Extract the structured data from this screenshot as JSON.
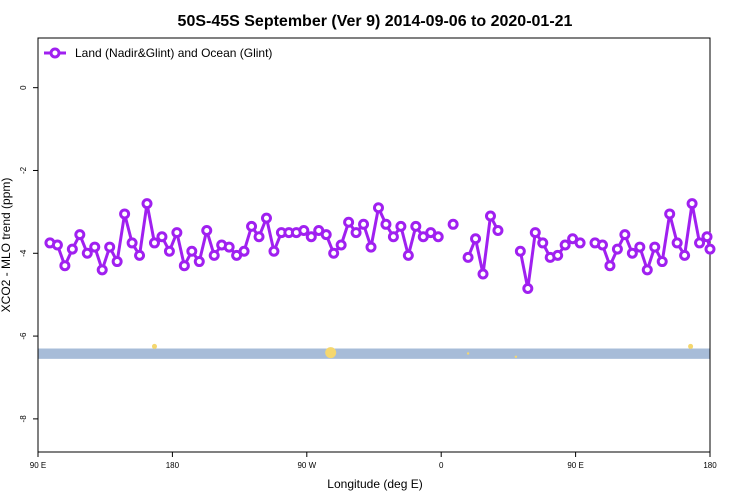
{
  "chart_data": {
    "type": "line",
    "title": "50S-45S September (Ver 9)   2014-09-06 to 2020-01-21",
    "xlabel": "Longitude (deg E)",
    "ylabel": "XCO2 - MLO trend (ppm)",
    "x_ticks": [
      {
        "value": 90,
        "label": "90 E"
      },
      {
        "value": 180,
        "label": "180"
      },
      {
        "value": 270,
        "label": "90 W"
      },
      {
        "value": 360,
        "label": "0"
      },
      {
        "value": 450,
        "label": "90 E"
      },
      {
        "value": 540,
        "label": "180"
      }
    ],
    "y_ticks": [
      0,
      -2,
      -4,
      -6,
      -8
    ],
    "xlim": [
      90,
      540
    ],
    "ylim": [
      -8.8,
      1.2
    ],
    "legend": {
      "position": "top-left"
    },
    "series": [
      {
        "name": "Land (Nadir&Glint) and Ocean (Glint)",
        "color": "#a020f0",
        "x": [
          98,
          103,
          108,
          113,
          118,
          123,
          128,
          133,
          138,
          143,
          148,
          153,
          158,
          163,
          168,
          173,
          178,
          183,
          188,
          193,
          198,
          203,
          208,
          213,
          218,
          223,
          228,
          233,
          238,
          243,
          248,
          253,
          258,
          263,
          268,
          273,
          278,
          283,
          288,
          293,
          298,
          303,
          308,
          313,
          318,
          323,
          328,
          333,
          338,
          343,
          348,
          353,
          358,
          null,
          368,
          null,
          378,
          383,
          388,
          393,
          398,
          null,
          413,
          418,
          423,
          428,
          433,
          438,
          443,
          448,
          453,
          null,
          463,
          468,
          473,
          478,
          483,
          488,
          493,
          498,
          503,
          508,
          513,
          518,
          523,
          528,
          533,
          538,
          540
        ],
        "y": [
          -3.75,
          -3.8,
          -4.3,
          -3.9,
          -3.55,
          -4.0,
          -3.85,
          -4.4,
          -3.85,
          -4.2,
          -3.05,
          -3.75,
          -4.05,
          -2.8,
          -3.75,
          -3.6,
          -3.95,
          -3.5,
          -4.3,
          -3.95,
          -4.2,
          -3.45,
          -4.05,
          -3.8,
          -3.85,
          -4.05,
          -3.95,
          -3.35,
          -3.6,
          -3.15,
          -3.95,
          -3.5,
          -3.5,
          -3.5,
          -3.45,
          -3.6,
          -3.45,
          -3.55,
          -4.0,
          -3.8,
          -3.25,
          -3.5,
          -3.3,
          -3.85,
          -2.9,
          -3.3,
          -3.6,
          -3.35,
          -4.05,
          -3.35,
          -3.6,
          -3.5,
          -3.6,
          null,
          -3.3,
          null,
          -4.1,
          -3.65,
          -4.5,
          -3.1,
          -3.45,
          null,
          -3.95,
          -4.85,
          -3.5,
          -3.75,
          -4.1,
          -4.05,
          -3.8,
          -3.65,
          -3.75,
          null,
          -3.75,
          -3.8,
          -4.3,
          -3.9,
          -3.55,
          -4.0,
          -3.85,
          -4.4,
          -3.85,
          -4.2,
          -3.05,
          -3.75,
          -4.05,
          -2.8,
          -3.75,
          -3.6,
          -3.9
        ]
      }
    ],
    "background_band": {
      "y_range": [
        -6.3,
        -6.55
      ],
      "color": "#a7bcd8"
    },
    "overlay_marks": [
      {
        "x": 168,
        "y": -6.25,
        "size": "small",
        "color": "#f5d76e"
      },
      {
        "x": 286,
        "y": -6.4,
        "size": "large",
        "color": "#f5d76e"
      },
      {
        "x": 378,
        "y": -6.42,
        "size": "dot",
        "color": "#f5d76e"
      },
      {
        "x": 410,
        "y": -6.5,
        "size": "dot",
        "color": "#f5d76e"
      },
      {
        "x": 527,
        "y": -6.25,
        "size": "small",
        "color": "#f5d76e"
      }
    ]
  }
}
